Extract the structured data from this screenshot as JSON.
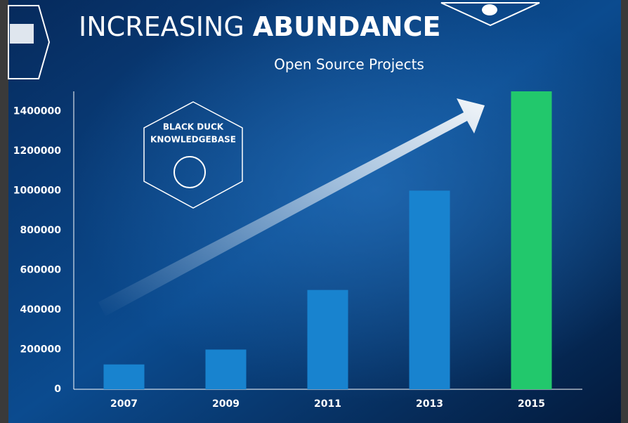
{
  "chart_data": {
    "type": "bar",
    "title": [
      "INCREASING",
      "ABUNDANCE"
    ],
    "subtitle": "Open Source Projects",
    "badge": [
      "BLACK DUCK",
      "KNOWLEDGEBASE"
    ],
    "categories": [
      "2007",
      "2009",
      "2011",
      "2013",
      "2015"
    ],
    "values": [
      125000,
      200000,
      500000,
      1000000,
      1500000
    ],
    "colors": [
      "#1883cf",
      "#1883cf",
      "#1883cf",
      "#1883cf",
      "#22c86c"
    ],
    "ylim": [
      0,
      1500000
    ],
    "yticks": [
      0,
      200000,
      400000,
      600000,
      800000,
      1000000,
      1200000,
      1400000
    ],
    "grid": false
  }
}
